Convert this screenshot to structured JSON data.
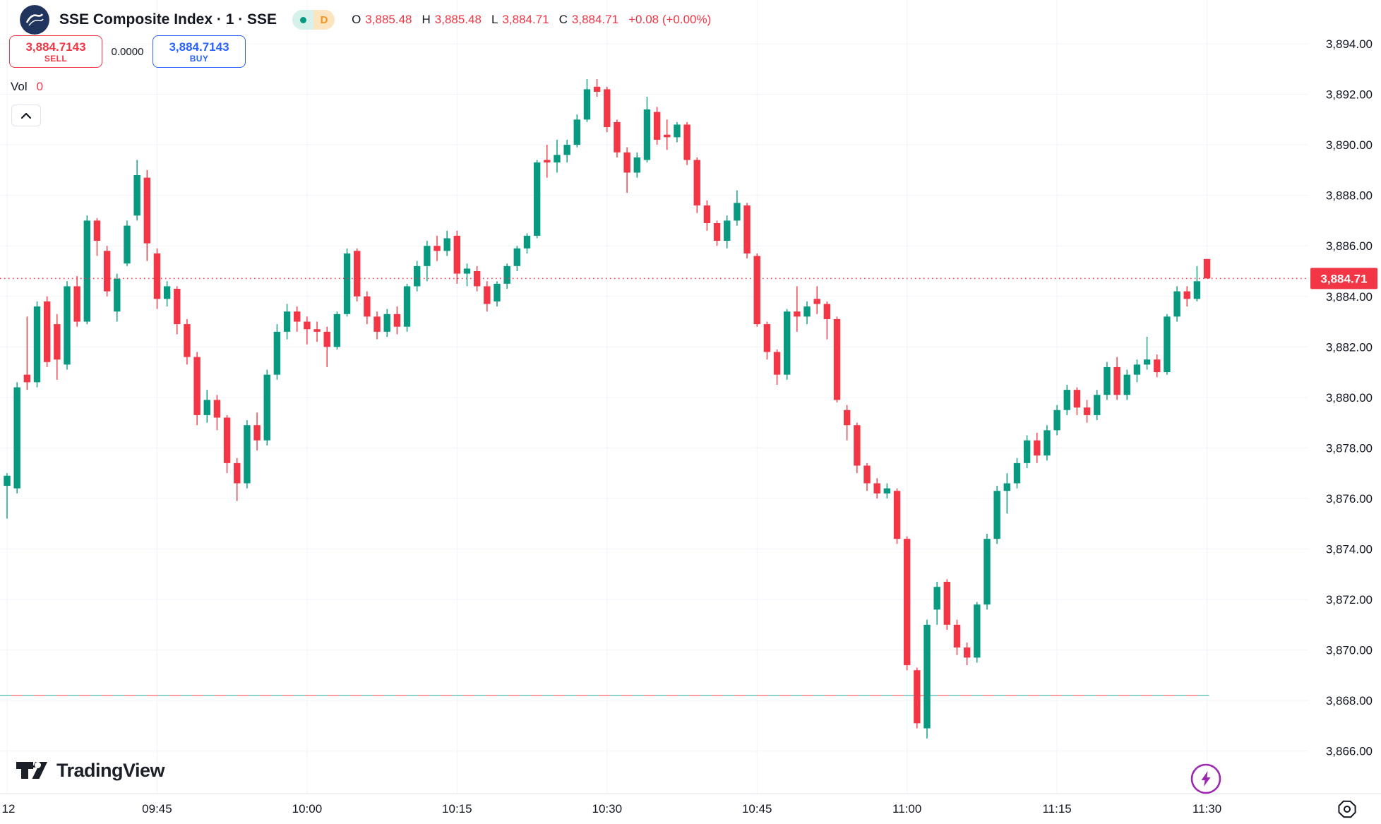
{
  "header": {
    "title": "SSE Composite Index · 1 · SSE",
    "marker_dot_color": "#089981",
    "interval_badge": "D",
    "ohlc": {
      "o_label": "O",
      "o": "3,885.48",
      "h_label": "H",
      "h": "3,885.48",
      "l_label": "L",
      "l": "3,884.71",
      "c_label": "C",
      "c": "3,884.71",
      "change": "+0.08 (+0.00%)"
    }
  },
  "trade_panel": {
    "sell_price": "3,884.7143",
    "sell_label": "SELL",
    "spread": "0.0000",
    "buy_price": "3,884.7143",
    "buy_label": "BUY"
  },
  "volume": {
    "label": "Vol",
    "value": "0"
  },
  "watermark": "TradingView",
  "colors": {
    "up": "#089981",
    "down": "#f23645",
    "grid": "#f0f3fa",
    "axis_text": "#131722",
    "last_price_bg": "#f23645",
    "buy_accent": "#2962ff",
    "lightning": "#9c27b0",
    "prev_close_dash_red": "#f78084",
    "prev_close_dash_teal": "#66c6bd"
  },
  "chart_data": {
    "type": "candlestick",
    "title": "SSE Composite Index",
    "interval": "1",
    "exchange": "SSE",
    "start_time": "09:30",
    "interval_min": 1,
    "y_axis": {
      "min": 3866,
      "max": 3894,
      "step": 2,
      "labels": [
        "3,894.00",
        "3,892.00",
        "3,890.00",
        "3,888.00",
        "3,886.00",
        "3,884.00",
        "3,882.00",
        "3,880.00",
        "3,878.00",
        "3,876.00",
        "3,874.00",
        "3,872.00",
        "3,870.00",
        "3,868.00",
        "3,866.00"
      ],
      "values": [
        3894,
        3892,
        3890,
        3888,
        3886,
        3884,
        3882,
        3880,
        3878,
        3876,
        3874,
        3872,
        3870,
        3868,
        3866
      ]
    },
    "x_axis": {
      "date_label": "12",
      "time_labels": [
        "09:45",
        "10:00",
        "10:15",
        "10:30",
        "10:45",
        "11:00",
        "11:15",
        "11:30"
      ]
    },
    "last_price": 3884.71,
    "last_price_label": "3,884.71",
    "prev_close_level": 3868.2,
    "grid": true,
    "candles": [
      [
        3876.5,
        3877.0,
        3875.2,
        3876.9
      ],
      [
        3876.4,
        3880.6,
        3876.2,
        3880.4
      ],
      [
        3880.9,
        3883.2,
        3880.3,
        3880.6
      ],
      [
        3880.6,
        3883.8,
        3880.4,
        3883.6
      ],
      [
        3883.8,
        3884.0,
        3881.2,
        3881.4
      ],
      [
        3882.9,
        3883.3,
        3880.7,
        3881.5
      ],
      [
        3881.3,
        3884.6,
        3881.1,
        3884.4
      ],
      [
        3884.4,
        3884.8,
        3882.8,
        3883.0
      ],
      [
        3883.0,
        3887.2,
        3882.9,
        3887.0
      ],
      [
        3887.0,
        3887.1,
        3885.6,
        3886.2
      ],
      [
        3885.8,
        3886.0,
        3884.0,
        3884.2
      ],
      [
        3883.4,
        3884.9,
        3883.0,
        3884.7
      ],
      [
        3885.3,
        3887.0,
        3885.2,
        3886.8
      ],
      [
        3887.2,
        3889.4,
        3887.0,
        3888.8
      ],
      [
        3888.7,
        3889.0,
        3885.4,
        3886.1
      ],
      [
        3885.7,
        3885.9,
        3883.5,
        3883.9
      ],
      [
        3883.9,
        3884.6,
        3883.6,
        3884.4
      ],
      [
        3884.3,
        3884.4,
        3882.5,
        3882.9
      ],
      [
        3882.9,
        3883.1,
        3881.3,
        3881.6
      ],
      [
        3881.6,
        3881.8,
        3878.9,
        3879.3
      ],
      [
        3879.3,
        3880.3,
        3879.0,
        3879.9
      ],
      [
        3879.9,
        3880.1,
        3878.7,
        3879.2
      ],
      [
        3879.2,
        3879.3,
        3877.0,
        3877.4
      ],
      [
        3877.4,
        3877.6,
        3875.9,
        3876.6
      ],
      [
        3876.6,
        3879.1,
        3876.4,
        3878.9
      ],
      [
        3878.9,
        3879.4,
        3877.9,
        3878.3
      ],
      [
        3878.3,
        3881.1,
        3878.1,
        3880.9
      ],
      [
        3880.9,
        3882.9,
        3880.7,
        3882.6
      ],
      [
        3882.6,
        3883.7,
        3882.3,
        3883.4
      ],
      [
        3883.4,
        3883.6,
        3882.6,
        3883.0
      ],
      [
        3883.0,
        3883.2,
        3882.1,
        3882.7
      ],
      [
        3882.7,
        3883.0,
        3882.2,
        3882.6
      ],
      [
        3882.6,
        3882.8,
        3881.2,
        3882.0
      ],
      [
        3882.0,
        3883.4,
        3881.9,
        3883.3
      ],
      [
        3883.3,
        3885.9,
        3883.2,
        3885.7
      ],
      [
        3885.8,
        3885.9,
        3883.8,
        3884.0
      ],
      [
        3884.0,
        3884.2,
        3882.9,
        3883.2
      ],
      [
        3883.2,
        3883.4,
        3882.3,
        3882.6
      ],
      [
        3882.6,
        3883.5,
        3882.4,
        3883.3
      ],
      [
        3883.3,
        3883.6,
        3882.5,
        3882.8
      ],
      [
        3882.8,
        3884.5,
        3882.6,
        3884.4
      ],
      [
        3884.4,
        3885.4,
        3884.2,
        3885.2
      ],
      [
        3885.2,
        3886.2,
        3884.6,
        3886.0
      ],
      [
        3886.0,
        3886.4,
        3885.4,
        3885.8
      ],
      [
        3885.8,
        3886.6,
        3885.6,
        3886.3
      ],
      [
        3886.4,
        3886.6,
        3884.5,
        3884.9
      ],
      [
        3884.9,
        3885.3,
        3884.4,
        3885.1
      ],
      [
        3885.0,
        3885.2,
        3884.2,
        3884.4
      ],
      [
        3884.4,
        3884.6,
        3883.4,
        3883.7
      ],
      [
        3883.8,
        3884.6,
        3883.6,
        3884.5
      ],
      [
        3884.5,
        3885.3,
        3884.3,
        3885.2
      ],
      [
        3885.2,
        3886.0,
        3885.0,
        3885.9
      ],
      [
        3885.9,
        3886.5,
        3885.7,
        3886.4
      ],
      [
        3886.4,
        3889.4,
        3886.3,
        3889.3
      ],
      [
        3889.4,
        3890.0,
        3888.7,
        3889.3
      ],
      [
        3889.3,
        3890.2,
        3888.9,
        3889.6
      ],
      [
        3889.6,
        3890.2,
        3889.3,
        3890.0
      ],
      [
        3890.0,
        3891.2,
        3889.9,
        3891.0
      ],
      [
        3891.0,
        3892.6,
        3890.9,
        3892.2
      ],
      [
        3892.3,
        3892.6,
        3891.9,
        3892.1
      ],
      [
        3892.2,
        3892.3,
        3890.5,
        3890.7
      ],
      [
        3890.9,
        3891.0,
        3889.5,
        3889.7
      ],
      [
        3889.7,
        3889.9,
        3888.1,
        3888.9
      ],
      [
        3888.9,
        3889.7,
        3888.7,
        3889.5
      ],
      [
        3889.4,
        3891.9,
        3889.3,
        3891.4
      ],
      [
        3891.3,
        3891.5,
        3890.0,
        3890.2
      ],
      [
        3890.4,
        3891.0,
        3889.8,
        3890.3
      ],
      [
        3890.3,
        3890.9,
        3890.1,
        3890.8
      ],
      [
        3890.8,
        3890.9,
        3889.2,
        3889.4
      ],
      [
        3889.4,
        3889.5,
        3887.3,
        3887.6
      ],
      [
        3887.6,
        3887.8,
        3886.6,
        3886.9
      ],
      [
        3886.9,
        3887.0,
        3886.0,
        3886.2
      ],
      [
        3886.2,
        3887.2,
        3885.9,
        3887.0
      ],
      [
        3887.0,
        3888.2,
        3886.8,
        3887.7
      ],
      [
        3887.6,
        3887.7,
        3885.5,
        3885.7
      ],
      [
        3885.6,
        3885.7,
        3882.8,
        3882.9
      ],
      [
        3882.9,
        3883.0,
        3881.5,
        3881.8
      ],
      [
        3881.8,
        3881.9,
        3880.5,
        3880.9
      ],
      [
        3880.9,
        3883.5,
        3880.7,
        3883.4
      ],
      [
        3883.4,
        3884.4,
        3882.6,
        3883.2
      ],
      [
        3883.2,
        3883.8,
        3882.9,
        3883.6
      ],
      [
        3883.9,
        3884.4,
        3883.3,
        3883.7
      ],
      [
        3883.7,
        3883.8,
        3882.3,
        3883.1
      ],
      [
        3883.1,
        3883.2,
        3879.8,
        3879.9
      ],
      [
        3879.5,
        3879.7,
        3878.3,
        3878.9
      ],
      [
        3878.9,
        3879.0,
        3877.0,
        3877.3
      ],
      [
        3877.3,
        3877.4,
        3876.3,
        3876.6
      ],
      [
        3876.6,
        3876.8,
        3876.0,
        3876.2
      ],
      [
        3876.2,
        3876.6,
        3876.0,
        3876.4
      ],
      [
        3876.3,
        3876.4,
        3874.2,
        3874.4
      ],
      [
        3874.4,
        3874.5,
        3869.2,
        3869.4
      ],
      [
        3869.2,
        3869.3,
        3866.9,
        3867.1
      ],
      [
        3866.9,
        3871.2,
        3866.5,
        3871.0
      ],
      [
        3871.6,
        3872.7,
        3871.0,
        3872.5
      ],
      [
        3872.7,
        3872.8,
        3870.8,
        3871.0
      ],
      [
        3871.0,
        3871.2,
        3869.8,
        3870.1
      ],
      [
        3870.1,
        3870.3,
        3869.4,
        3869.7
      ],
      [
        3869.7,
        3871.9,
        3869.5,
        3871.8
      ],
      [
        3871.8,
        3874.6,
        3871.6,
        3874.4
      ],
      [
        3874.4,
        3876.5,
        3874.2,
        3876.3
      ],
      [
        3876.3,
        3877.0,
        3875.4,
        3876.6
      ],
      [
        3876.6,
        3877.6,
        3876.4,
        3877.4
      ],
      [
        3877.4,
        3878.5,
        3877.2,
        3878.3
      ],
      [
        3878.3,
        3878.6,
        3877.4,
        3877.7
      ],
      [
        3877.7,
        3878.9,
        3877.5,
        3878.7
      ],
      [
        3878.7,
        3879.7,
        3878.5,
        3879.5
      ],
      [
        3879.5,
        3880.5,
        3879.3,
        3880.3
      ],
      [
        3880.3,
        3880.4,
        3879.3,
        3879.6
      ],
      [
        3879.6,
        3879.9,
        3879.0,
        3879.3
      ],
      [
        3879.3,
        3880.3,
        3879.1,
        3880.1
      ],
      [
        3880.1,
        3881.4,
        3879.9,
        3881.2
      ],
      [
        3881.2,
        3881.6,
        3879.9,
        3880.1
      ],
      [
        3880.1,
        3881.1,
        3879.9,
        3880.9
      ],
      [
        3880.9,
        3881.5,
        3880.6,
        3881.3
      ],
      [
        3881.3,
        3882.4,
        3881.1,
        3881.5
      ],
      [
        3881.5,
        3881.7,
        3880.8,
        3881.0
      ],
      [
        3881.0,
        3883.3,
        3880.9,
        3883.2
      ],
      [
        3883.2,
        3884.4,
        3883.0,
        3884.2
      ],
      [
        3884.2,
        3884.4,
        3883.6,
        3883.9
      ],
      [
        3883.9,
        3885.2,
        3883.8,
        3884.6
      ],
      [
        3885.48,
        3885.48,
        3884.71,
        3884.71
      ]
    ]
  }
}
